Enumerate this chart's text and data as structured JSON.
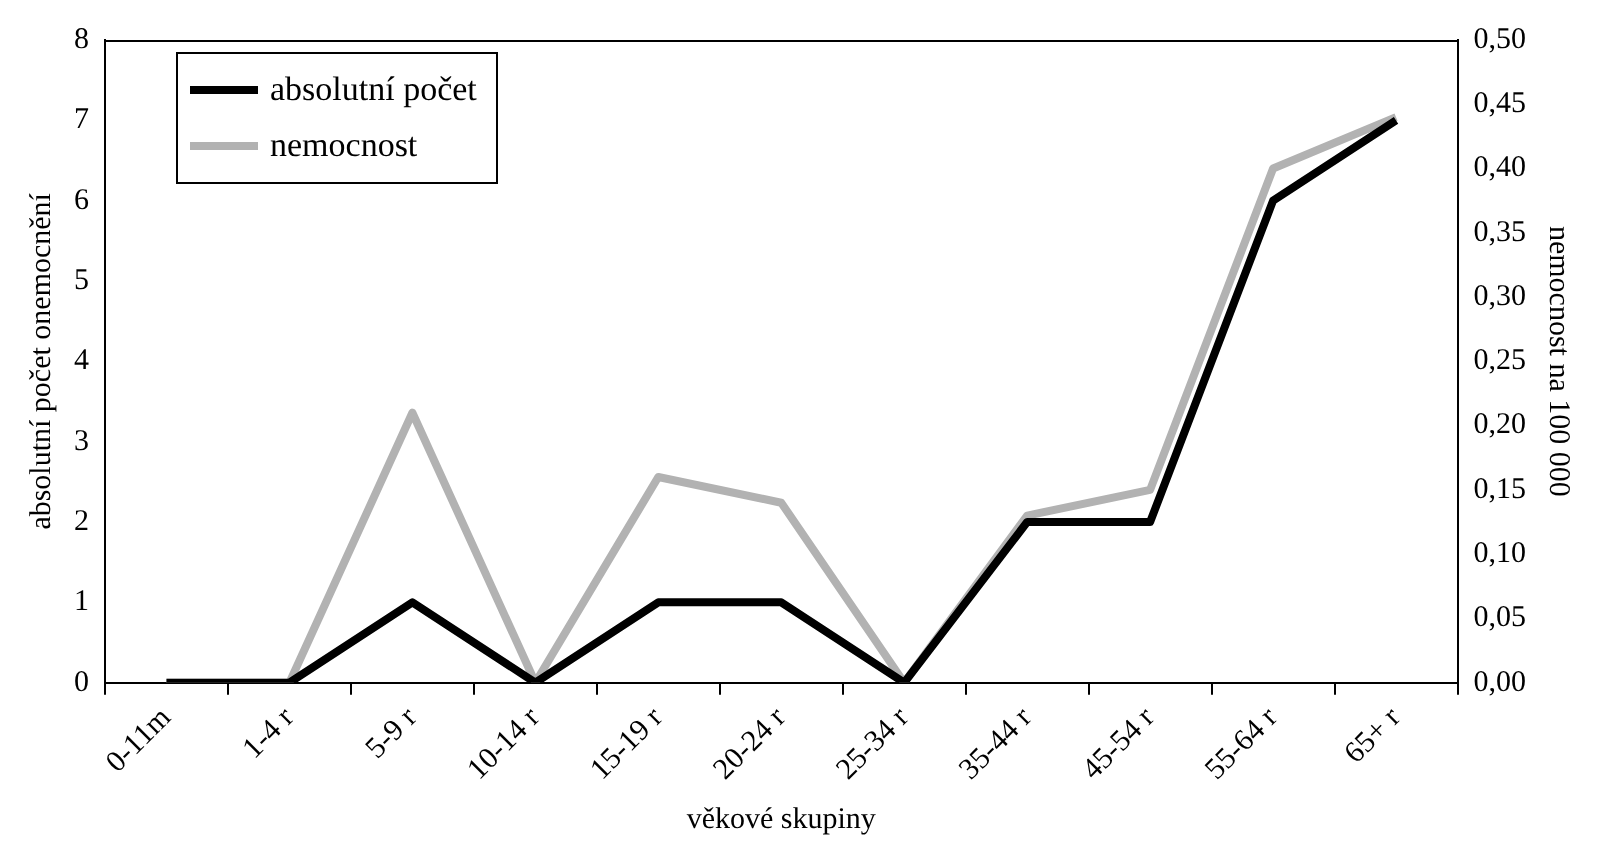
{
  "chart_data": {
    "type": "line",
    "xlabel": "věkové skupiny",
    "ylabel": "absolutní počet onemocnění",
    "y2label": "nemocnost na 100 000",
    "categories": [
      "0-11m",
      "1-4 r",
      "5-9 r",
      "10-14 r",
      "15-19 r",
      "20-24 r",
      "25-34 r",
      "35-44 r",
      "45-54 r",
      "55-64 r",
      "65+ r"
    ],
    "series": [
      {
        "name": "absolutní počet",
        "color": "#000000",
        "values": [
          0,
          0,
          1,
          0,
          1,
          1,
          0,
          2,
          2,
          6,
          7
        ]
      },
      {
        "name": "nemocnost",
        "color": "#b2b2b2",
        "axis": "y2",
        "values": [
          0,
          0,
          0.21,
          0,
          0.16,
          0.14,
          0,
          0.13,
          0.15,
          0.4,
          0.44
        ]
      }
    ],
    "ylim": [
      0,
      8
    ],
    "yticks": [
      0,
      1,
      2,
      3,
      4,
      5,
      6,
      7,
      8
    ],
    "y2lim": [
      0,
      0.5
    ],
    "y2ticks": [
      {
        "value": 0,
        "label": "0,00"
      },
      {
        "value": 0.05,
        "label": "0,05"
      },
      {
        "value": 0.1,
        "label": "0,10"
      },
      {
        "value": 0.15,
        "label": "0,15"
      },
      {
        "value": 0.2,
        "label": "0,20"
      },
      {
        "value": 0.25,
        "label": "0,25"
      },
      {
        "value": 0.3,
        "label": "0,30"
      },
      {
        "value": 0.35,
        "label": "0,35"
      },
      {
        "value": 0.4,
        "label": "0,40"
      },
      {
        "value": 0.45,
        "label": "0,45"
      },
      {
        "value": 0.5,
        "label": "0,50"
      }
    ],
    "legend": "top left",
    "grid": false,
    "marker": "none",
    "line_style": "solid"
  }
}
